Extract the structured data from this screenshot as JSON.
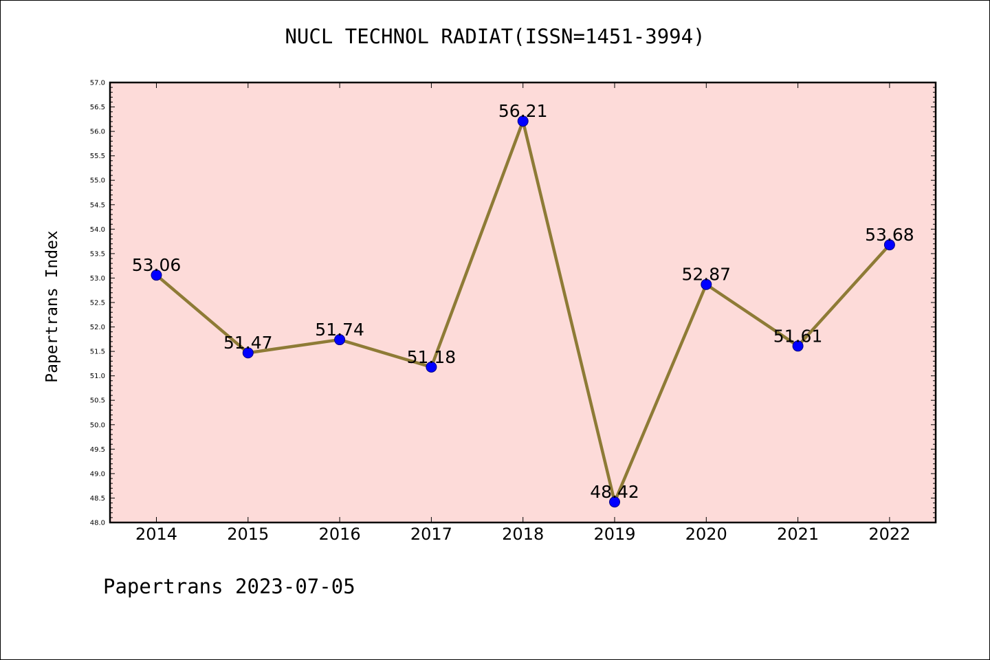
{
  "title": "NUCL TECHNOL RADIAT(ISSN=1451-3994)",
  "footer": "Papertrans 2023-07-05",
  "colors": {
    "plot_background": "#fddbd9",
    "line": "#8e7b36",
    "marker": "#0000ff",
    "marker_edge": "#000080"
  },
  "chart_data": {
    "type": "line",
    "title": "NUCL TECHNOL RADIAT(ISSN=1451-3994)",
    "xlabel": "",
    "ylabel": "Papertrans Index",
    "categories": [
      "2014",
      "2015",
      "2016",
      "2017",
      "2018",
      "2019",
      "2020",
      "2021",
      "2022"
    ],
    "values": [
      53.06,
      51.47,
      51.74,
      51.18,
      56.21,
      48.42,
      52.87,
      51.61,
      53.68
    ],
    "data_labels": [
      "53.06",
      "51.47",
      "51.74",
      "51.18",
      "56.21",
      "48.42",
      "52.87",
      "51.61",
      "53.68"
    ],
    "ylim": [
      48.0,
      57.0
    ],
    "y_major_ticks": [
      "48.0",
      "48.5",
      "49.0",
      "49.5",
      "50.0",
      "50.5",
      "51.0",
      "51.5",
      "52.0",
      "52.5",
      "53.0",
      "53.5",
      "54.0",
      "54.5",
      "55.0",
      "55.5",
      "56.0",
      "56.5",
      "57.0"
    ],
    "grid": false,
    "legend": "none"
  }
}
